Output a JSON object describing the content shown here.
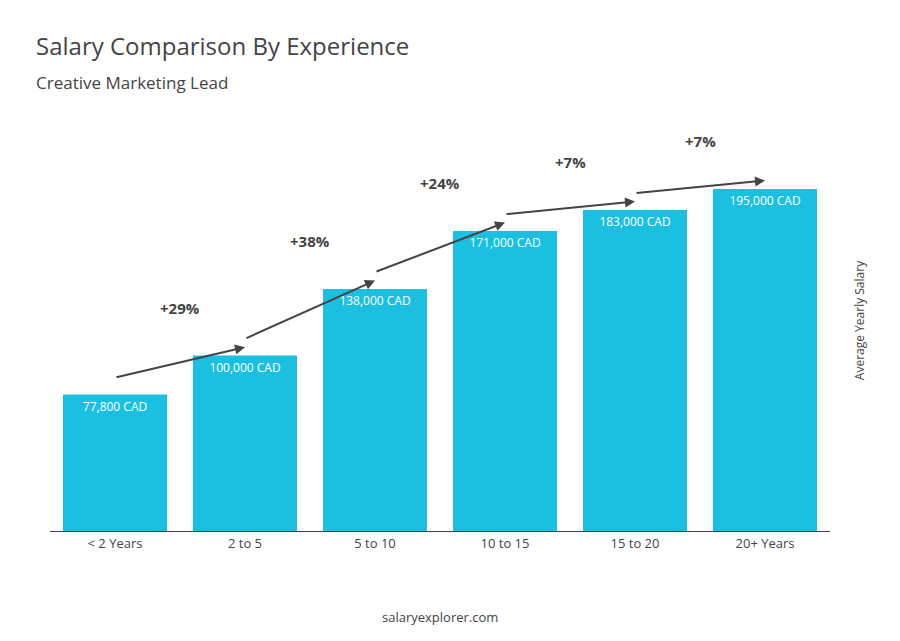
{
  "chart_data": {
    "type": "bar",
    "title": "Salary Comparison By Experience",
    "subtitle": "Creative Marketing Lead",
    "categories": [
      "< 2 Years",
      "2 to 5",
      "5 to 10",
      "10 to 15",
      "15 to 20",
      "20+ Years"
    ],
    "values": [
      77800,
      100000,
      138000,
      171000,
      183000,
      195000
    ],
    "value_labels": [
      "77,800 CAD",
      "100,000 CAD",
      "138,000 CAD",
      "171,000 CAD",
      "183,000 CAD",
      "195,000 CAD"
    ],
    "data_labels": true,
    "color": "#1BBFE0",
    "ylabel": "Average Yearly Salary",
    "ylim": [
      0,
      240000
    ],
    "tick_labels": "x",
    "grid": false,
    "annotations": [
      {
        "text": "+29%",
        "category": "2 to 5"
      },
      {
        "text": "+38%",
        "category": "5 to 10"
      },
      {
        "text": "+24%",
        "category": "10 to 15"
      },
      {
        "text": "+7%",
        "category": "15 to 20"
      },
      {
        "text": "+7%",
        "category": "20+ Years"
      }
    ],
    "footer": "salaryexplorer.com"
  }
}
